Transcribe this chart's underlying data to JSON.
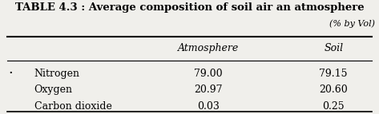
{
  "title": "TABLE 4.3 : Average composition of soil air an atmosphere",
  "subtitle": "(% by Vol)",
  "col_headers": [
    "",
    "Atmosphere",
    "Soil"
  ],
  "rows": [
    [
      "Nitrogen",
      "79.00",
      "79.15"
    ],
    [
      "Oxygen",
      "20.97",
      "20.60"
    ],
    [
      "Carbon dioxide",
      "0.03",
      "0.25"
    ]
  ],
  "background_color": "#f0efeb",
  "title_fontsize": 9.5,
  "header_fontsize": 9.0,
  "cell_fontsize": 9.0,
  "subtitle_fontsize": 8.0,
  "bullet": "·"
}
